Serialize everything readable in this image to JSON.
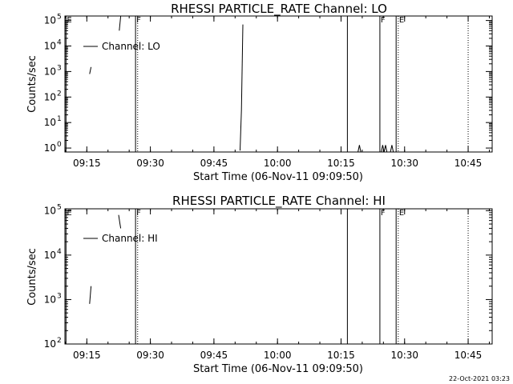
{
  "footer_date": "22-Oct-2021 03:23",
  "chart_data": [
    {
      "type": "line",
      "title": "RHESSI PARTICLE_RATE Channel: LO",
      "xlabel": "Start Time (06-Nov-11 09:09:50)",
      "ylabel": "Counts/sec",
      "x_unit": "minutes of day",
      "xlim": [
        "09:09:50",
        "10:50:40"
      ],
      "x_ticks": [
        "09:15",
        "09:30",
        "09:45",
        "10:00",
        "10:15",
        "10:30",
        "10:45"
      ],
      "y_scale": "log",
      "ylim": [
        0.7,
        150000
      ],
      "y_ticks": [
        "10^0",
        "10^1",
        "10^2",
        "10^3",
        "10^4",
        "10^5"
      ],
      "legend": {
        "label": "Channel: LO",
        "position": "top-left"
      },
      "series": [
        {
          "name": "Channel: LO",
          "segments": [
            [
              [
                "09:15:40",
                800
              ],
              [
                "09:16:00",
                1500
              ]
            ],
            [
              [
                "09:22:40",
                40000
              ],
              [
                "09:23:00",
                200000
              ]
            ],
            [
              [
                "09:51:10",
                0.8
              ],
              [
                "09:51:30",
                30
              ],
              [
                "09:51:50",
                70000
              ]
            ],
            [
              [
                "10:19:00",
                0.7
              ],
              [
                "10:19:20",
                1.3
              ],
              [
                "10:19:40",
                0.7
              ]
            ],
            [
              [
                "10:24:30",
                0.7
              ],
              [
                "10:24:50",
                1.3
              ],
              [
                "10:25:10",
                0.7
              ],
              [
                "10:25:30",
                1.3
              ],
              [
                "10:25:50",
                0.7
              ]
            ],
            [
              [
                "10:26:40",
                0.7
              ],
              [
                "10:27:00",
                1.3
              ],
              [
                "10:27:20",
                0.7
              ]
            ]
          ]
        }
      ],
      "markers": [
        {
          "time": "09:10:05",
          "style": "solid",
          "flag": "E"
        },
        {
          "time": "09:26:30",
          "style": "solid",
          "flag": "F"
        },
        {
          "time": "09:27:00",
          "style": "dotted",
          "flag": ""
        },
        {
          "time": "10:16:30",
          "style": "solid",
          "flag": ""
        },
        {
          "time": "10:24:10",
          "style": "solid",
          "flag": "F"
        },
        {
          "time": "10:28:00",
          "style": "solid",
          "flag": ""
        },
        {
          "time": "10:28:30",
          "style": "dotted",
          "flag": "E"
        },
        {
          "time": "10:45:00",
          "style": "dotted",
          "flag": ""
        }
      ]
    },
    {
      "type": "line",
      "title": "RHESSI PARTICLE_RATE Channel: HI",
      "xlabel": "Start Time (06-Nov-11 09:09:50)",
      "ylabel": "Counts/sec",
      "x_unit": "minutes of day",
      "xlim": [
        "09:09:50",
        "10:50:40"
      ],
      "x_ticks": [
        "09:15",
        "09:30",
        "09:45",
        "10:00",
        "10:15",
        "10:30",
        "10:45"
      ],
      "y_scale": "log",
      "ylim": [
        100,
        110000
      ],
      "y_ticks": [
        "10^2",
        "10^3",
        "10^4",
        "10^5"
      ],
      "legend": {
        "label": "Channel: HI",
        "position": "top-left"
      },
      "series": [
        {
          "name": "Channel: HI",
          "segments": [
            [
              [
                "09:15:40",
                800
              ],
              [
                "09:16:00",
                2000
              ]
            ],
            [
              [
                "09:22:30",
                80000
              ],
              [
                "09:22:50",
                50000
              ],
              [
                "09:23:00",
                40000
              ]
            ]
          ]
        }
      ],
      "markers": [
        {
          "time": "09:10:05",
          "style": "solid",
          "flag": "E"
        },
        {
          "time": "09:26:30",
          "style": "solid",
          "flag": "F"
        },
        {
          "time": "09:27:00",
          "style": "dotted",
          "flag": ""
        },
        {
          "time": "10:16:30",
          "style": "solid",
          "flag": ""
        },
        {
          "time": "10:24:10",
          "style": "solid",
          "flag": "F"
        },
        {
          "time": "10:28:00",
          "style": "solid",
          "flag": ""
        },
        {
          "time": "10:28:30",
          "style": "dotted",
          "flag": "E"
        },
        {
          "time": "10:45:00",
          "style": "dotted",
          "flag": ""
        }
      ]
    }
  ]
}
